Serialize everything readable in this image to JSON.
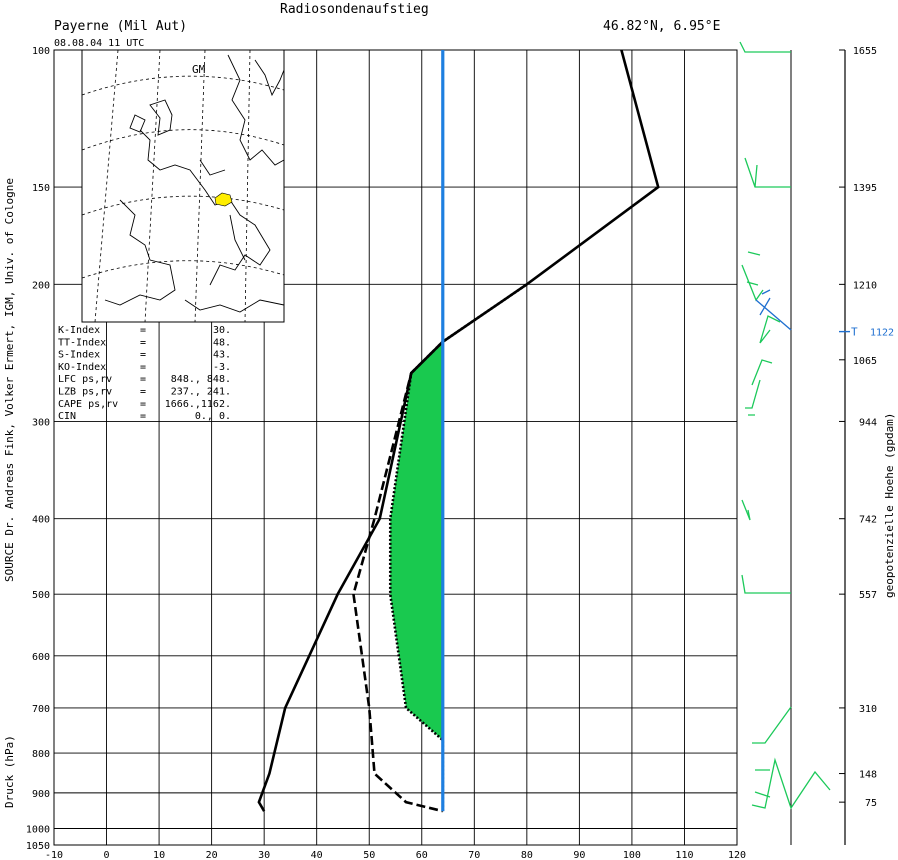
{
  "header": {
    "title": "Radiosondenaufstieg",
    "station": "Payerne (Mil Aut)",
    "coords": "46.82°N,  6.95°E",
    "datetime": "08.08.04  11 UTC"
  },
  "map": {
    "label": "GM"
  },
  "labels": {
    "source": "SOURCE Dr. Andreas Fink, Volker Ermert, IGM, Univ. of Cologne",
    "pressure_axis": "Druck (hPa)",
    "height_axis": "geopotenzielle Hoehe (gpdam)",
    "tropopause_marker": "T",
    "tropopause_height": "1122"
  },
  "indices": [
    {
      "name": "K-Index",
      "eq": "=",
      "value": "30."
    },
    {
      "name": "TT-Index",
      "eq": "=",
      "value": "48."
    },
    {
      "name": "S-Index",
      "eq": "=",
      "value": "43."
    },
    {
      "name": "KO-Index",
      "eq": "=",
      "value": "-3."
    },
    {
      "name": "LFC  ps,rv",
      "eq": "=",
      "value": "848., 848."
    },
    {
      "name": "LZB  ps,rv",
      "eq": "=",
      "value": "237., 241."
    },
    {
      "name": "CAPE ps,rv",
      "eq": "=",
      "value": "1666.,1162."
    },
    {
      "name": "CIN",
      "eq": "=",
      "value": "0.,   0."
    }
  ],
  "chart_data": {
    "type": "line",
    "xlabel": "",
    "ylabel": "Druck (hPa)",
    "x_ticks": [
      -10,
      0,
      10,
      20,
      30,
      40,
      50,
      60,
      70,
      80,
      90,
      100,
      110,
      120
    ],
    "xlim": [
      -10,
      120
    ],
    "y_ticks": [
      100,
      150,
      200,
      300,
      400,
      500,
      600,
      700,
      800,
      900,
      1000,
      1050
    ],
    "ylim": [
      1050,
      100
    ],
    "height_ticks": [
      {
        "p": 100,
        "label": "1655"
      },
      {
        "p": 150,
        "label": "1395"
      },
      {
        "p": 200,
        "label": "1210"
      },
      {
        "p": 250,
        "label": "1065"
      },
      {
        "p": 300,
        "label": "944"
      },
      {
        "p": 400,
        "label": "742"
      },
      {
        "p": 500,
        "label": "557"
      },
      {
        "p": 700,
        "label": "310"
      },
      {
        "p": 850,
        "label": "148"
      },
      {
        "p": 925,
        "label": "75"
      }
    ],
    "tropopause_p": 230,
    "series": [
      {
        "style": "solid-black",
        "points": [
          [
            98,
            100
          ],
          [
            105,
            150
          ],
          [
            80,
            200
          ],
          [
            64,
            237
          ],
          [
            58,
            260
          ],
          [
            52,
            400
          ],
          [
            44,
            500
          ],
          [
            34,
            700
          ],
          [
            31,
            850
          ],
          [
            29,
            925
          ],
          [
            30,
            950
          ]
        ]
      },
      {
        "style": "dashed-black",
        "points": [
          [
            64,
            237
          ],
          [
            58,
            260
          ],
          [
            51,
            400
          ],
          [
            47,
            500
          ],
          [
            50,
            700
          ],
          [
            51,
            850
          ],
          [
            57,
            925
          ],
          [
            64,
            950
          ]
        ]
      },
      {
        "style": "dotted-parcel",
        "points": [
          [
            64,
            950
          ],
          [
            64,
            770
          ],
          [
            57,
            700
          ],
          [
            54,
            500
          ],
          [
            54,
            400
          ],
          [
            58,
            260
          ],
          [
            64,
            237
          ],
          [
            80,
            200
          ]
        ]
      },
      {
        "style": "vertical-blue",
        "points": [
          [
            64,
            100
          ],
          [
            64,
            950
          ]
        ]
      }
    ],
    "cape_region": [
      [
        64,
        237
      ],
      [
        58,
        260
      ],
      [
        54,
        400
      ],
      [
        54,
        500
      ],
      [
        57,
        700
      ],
      [
        64,
        770
      ]
    ]
  }
}
